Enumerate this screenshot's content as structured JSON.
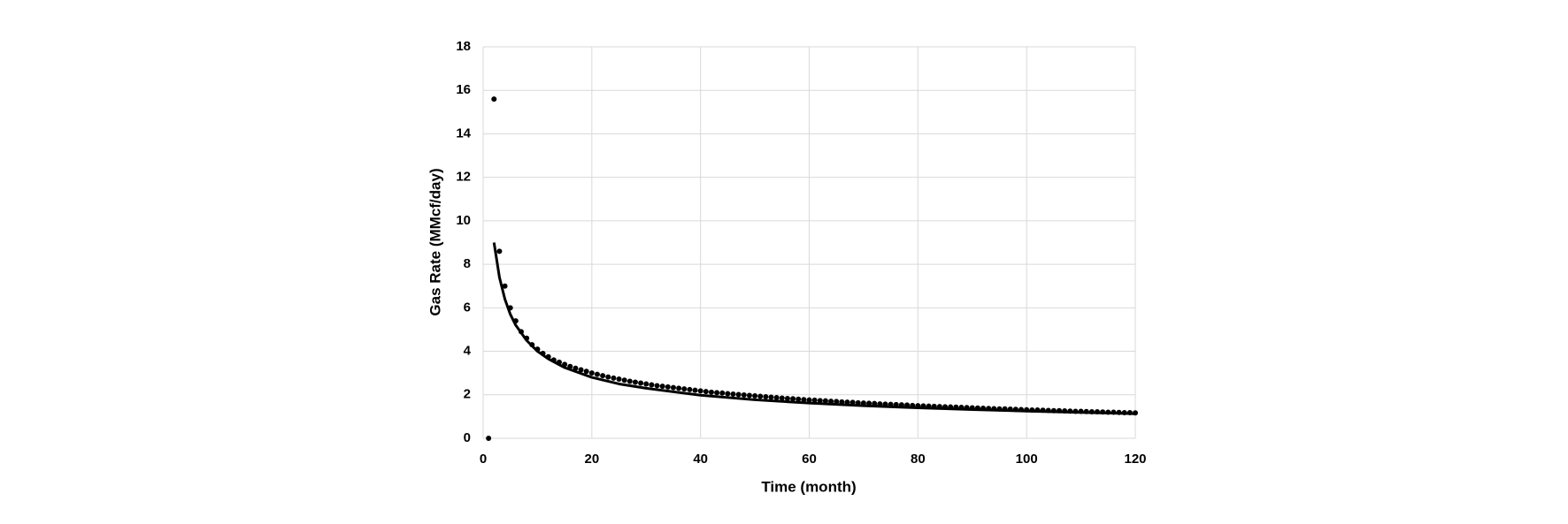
{
  "chart_data": {
    "type": "scatter",
    "x_label": "Time (month)",
    "y_label": "Gas Rate (MMcf/day)",
    "xlim": [
      0,
      120
    ],
    "xticks": [
      0,
      20,
      40,
      60,
      80,
      100,
      120
    ],
    "ylim": [
      0,
      18
    ],
    "yticks": [
      0,
      2,
      4,
      6,
      8,
      10,
      12,
      14,
      16,
      18
    ],
    "grid": true,
    "series": [
      {
        "type": "scatter",
        "color": "#000000",
        "x": [
          1,
          2,
          3,
          4,
          5,
          6,
          7,
          8,
          9,
          10,
          11,
          12,
          13,
          14,
          15,
          16,
          17,
          18,
          19,
          20,
          21,
          22,
          23,
          24,
          25,
          26,
          27,
          28,
          29,
          30,
          31,
          32,
          33,
          34,
          35,
          36,
          37,
          38,
          39,
          40,
          41,
          42,
          43,
          44,
          45,
          46,
          47,
          48,
          49,
          50,
          51,
          52,
          53,
          54,
          55,
          56,
          57,
          58,
          59,
          60,
          61,
          62,
          63,
          64,
          65,
          66,
          67,
          68,
          69,
          70,
          71,
          72,
          73,
          74,
          75,
          76,
          77,
          78,
          79,
          80,
          81,
          82,
          83,
          84,
          85,
          86,
          87,
          88,
          89,
          90,
          91,
          92,
          93,
          94,
          95,
          96,
          97,
          98,
          99,
          100,
          101,
          102,
          103,
          104,
          105,
          106,
          107,
          108,
          109,
          110,
          111,
          112,
          113,
          114,
          115,
          116,
          117,
          118,
          119,
          120
        ],
        "values": [
          0,
          15.6,
          8.6,
          7.0,
          6.0,
          5.4,
          4.9,
          4.6,
          4.3,
          4.1,
          3.9,
          3.75,
          3.6,
          3.5,
          3.4,
          3.3,
          3.22,
          3.15,
          3.08,
          3.0,
          2.94,
          2.88,
          2.82,
          2.77,
          2.72,
          2.67,
          2.62,
          2.58,
          2.54,
          2.5,
          2.46,
          2.42,
          2.39,
          2.36,
          2.33,
          2.3,
          2.27,
          2.24,
          2.21,
          2.18,
          2.15,
          2.12,
          2.1,
          2.08,
          2.05,
          2.03,
          2.01,
          1.99,
          1.97,
          1.95,
          1.93,
          1.91,
          1.89,
          1.87,
          1.85,
          1.83,
          1.82,
          1.8,
          1.78,
          1.76,
          1.75,
          1.73,
          1.72,
          1.7,
          1.69,
          1.67,
          1.66,
          1.65,
          1.63,
          1.62,
          1.61,
          1.6,
          1.58,
          1.57,
          1.56,
          1.55,
          1.54,
          1.53,
          1.51,
          1.5,
          1.49,
          1.48,
          1.47,
          1.46,
          1.45,
          1.44,
          1.43,
          1.42,
          1.41,
          1.4,
          1.39,
          1.38,
          1.37,
          1.36,
          1.35,
          1.35,
          1.34,
          1.33,
          1.32,
          1.31,
          1.3,
          1.3,
          1.29,
          1.28,
          1.27,
          1.27,
          1.26,
          1.25,
          1.24,
          1.24,
          1.23,
          1.22,
          1.22,
          1.21,
          1.2,
          1.2,
          1.19,
          1.18,
          1.18,
          1.17
        ]
      },
      {
        "type": "line",
        "color": "#000000",
        "x": [
          2,
          3,
          4,
          5,
          6,
          8,
          10,
          12,
          15,
          20,
          25,
          30,
          40,
          50,
          60,
          70,
          80,
          90,
          100,
          110,
          120
        ],
        "values": [
          9.0,
          7.4,
          6.4,
          5.7,
          5.2,
          4.5,
          4.0,
          3.65,
          3.25,
          2.8,
          2.5,
          2.3,
          1.98,
          1.77,
          1.62,
          1.5,
          1.4,
          1.32,
          1.25,
          1.19,
          1.13
        ]
      }
    ]
  }
}
